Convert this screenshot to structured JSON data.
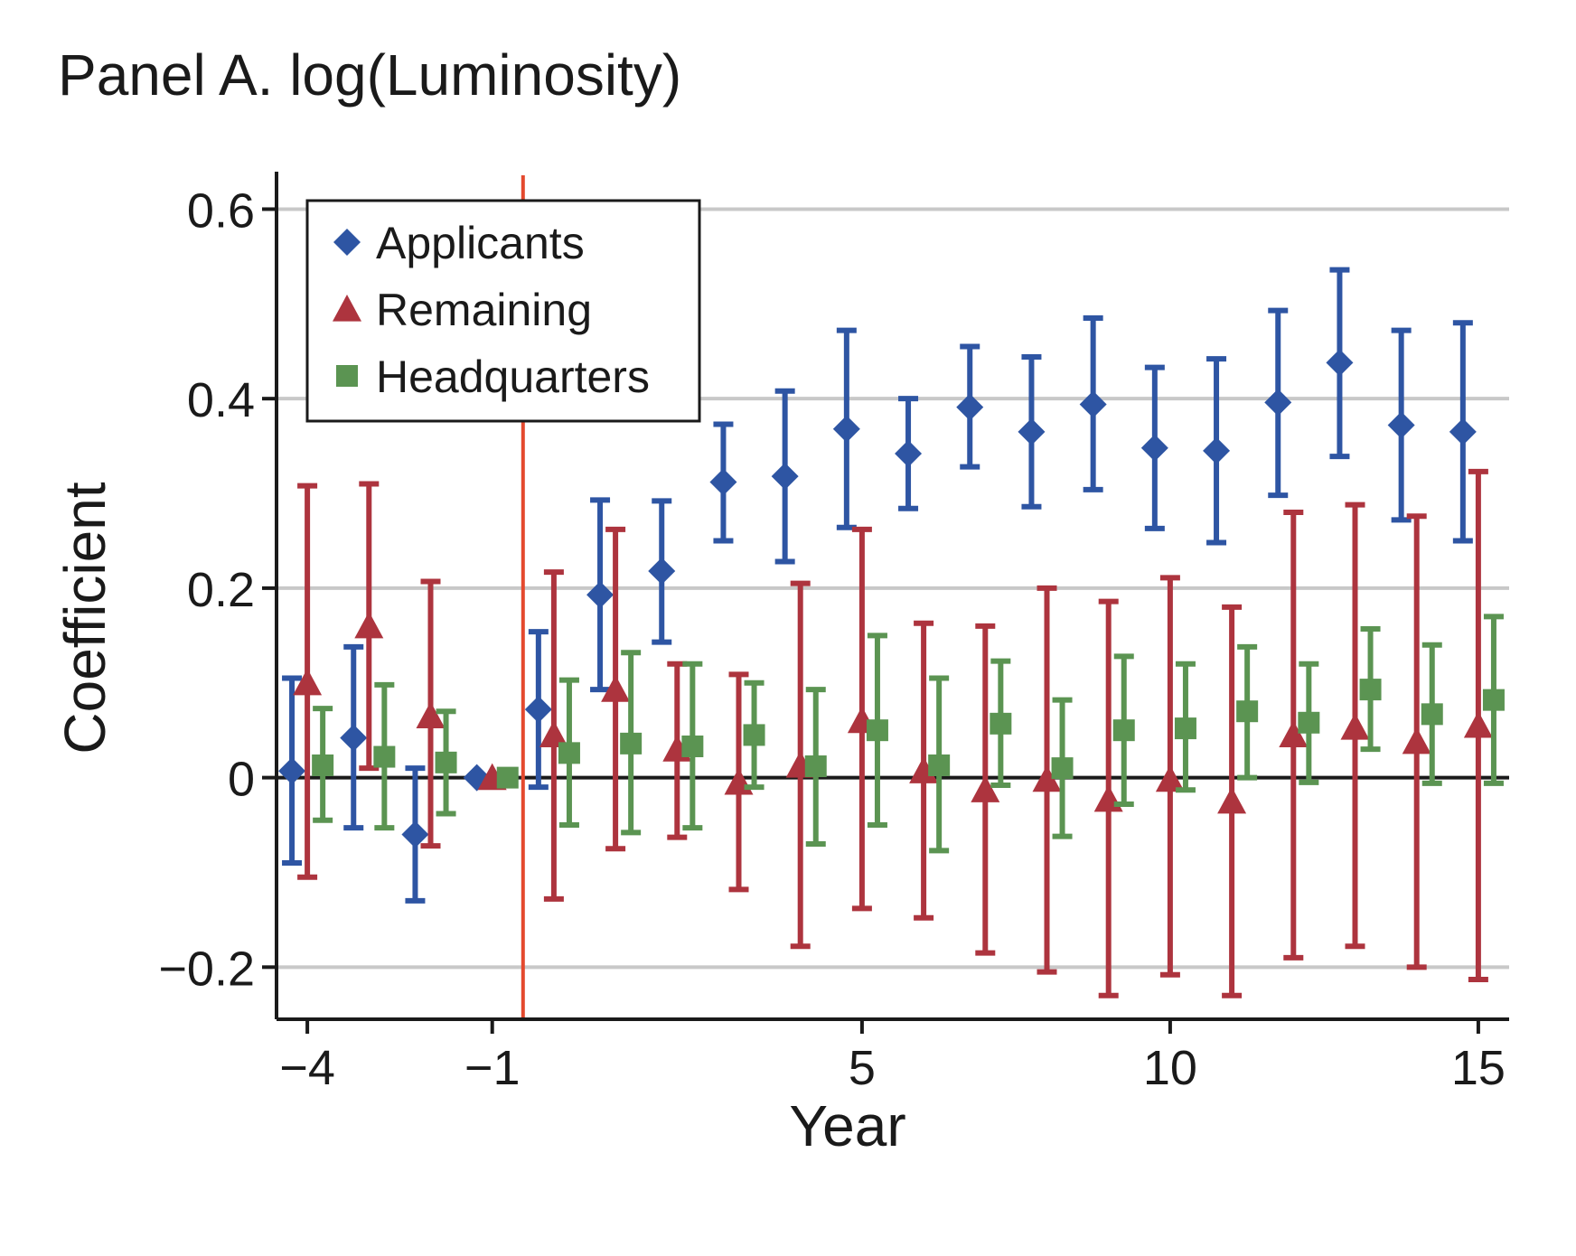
{
  "chart_data": {
    "type": "scatter",
    "title": "Panel A. log(Luminosity)",
    "xlabel": "Year",
    "ylabel": "Coefficient",
    "xlim": [
      -4.5,
      15.5
    ],
    "ylim": [
      -0.255,
      0.63
    ],
    "x_ticks": [
      -4,
      -1,
      5,
      10,
      15
    ],
    "x_tick_labels": [
      "−4",
      "−1",
      "5",
      "10",
      "15"
    ],
    "y_ticks": [
      -0.2,
      0,
      0.2,
      0.4,
      0.6
    ],
    "y_tick_labels": [
      "−0.2",
      "0",
      "0.2",
      "0.4",
      "0.6"
    ],
    "grid": true,
    "zero_line": true,
    "event_line_x": -0.5,
    "legend_position": "top-left",
    "colors": {
      "Applicants": "#2e55a3",
      "Remaining": "#ad343e",
      "Headquarters": "#5b9452",
      "event_line": "#e4492e"
    },
    "series": [
      {
        "name": "Applicants",
        "marker": "diamond",
        "x": [
          -4,
          -3,
          -2,
          -1,
          0,
          1,
          2,
          3,
          4,
          5,
          6,
          7,
          8,
          9,
          10,
          11,
          12,
          13,
          14,
          15
        ],
        "y": [
          0.007,
          0.042,
          -0.06,
          0.0,
          0.072,
          0.193,
          0.218,
          0.312,
          0.318,
          0.368,
          0.342,
          0.391,
          0.365,
          0.394,
          0.348,
          0.345,
          0.396,
          0.438,
          0.372,
          0.365
        ],
        "lower": [
          -0.09,
          -0.053,
          -0.13,
          0.0,
          -0.01,
          0.093,
          0.143,
          0.25,
          0.228,
          0.264,
          0.284,
          0.328,
          0.286,
          0.304,
          0.263,
          0.248,
          0.298,
          0.339,
          0.272,
          0.25
        ],
        "upper": [
          0.105,
          0.138,
          0.01,
          0.0,
          0.154,
          0.293,
          0.292,
          0.373,
          0.408,
          0.472,
          0.4,
          0.455,
          0.444,
          0.485,
          0.433,
          0.442,
          0.493,
          0.536,
          0.472,
          0.48
        ]
      },
      {
        "name": "Remaining",
        "marker": "triangle",
        "x": [
          -4,
          -3,
          -2,
          -1,
          0,
          1,
          2,
          3,
          4,
          5,
          6,
          7,
          8,
          9,
          10,
          11,
          12,
          13,
          14,
          15
        ],
        "y": [
          0.1,
          0.16,
          0.065,
          0.0,
          0.045,
          0.093,
          0.03,
          -0.005,
          0.013,
          0.06,
          0.007,
          -0.013,
          -0.002,
          -0.023,
          -0.002,
          -0.025,
          0.045,
          0.053,
          0.038,
          0.055
        ],
        "lower": [
          -0.105,
          0.01,
          -0.072,
          0.0,
          -0.128,
          -0.075,
          -0.063,
          -0.118,
          -0.178,
          -0.138,
          -0.148,
          -0.185,
          -0.205,
          -0.23,
          -0.208,
          -0.23,
          -0.19,
          -0.178,
          -0.2,
          -0.213
        ],
        "upper": [
          0.308,
          0.31,
          0.207,
          0.0,
          0.217,
          0.262,
          0.12,
          0.109,
          0.205,
          0.262,
          0.163,
          0.16,
          0.2,
          0.186,
          0.211,
          0.18,
          0.28,
          0.288,
          0.276,
          0.323
        ]
      },
      {
        "name": "Headquarters",
        "marker": "square",
        "x": [
          -4,
          -3,
          -2,
          -1,
          0,
          1,
          2,
          3,
          4,
          5,
          6,
          7,
          8,
          9,
          10,
          11,
          12,
          13,
          14,
          15
        ],
        "y": [
          0.013,
          0.022,
          0.016,
          0.0,
          0.026,
          0.036,
          0.033,
          0.045,
          0.012,
          0.05,
          0.013,
          0.057,
          0.01,
          0.05,
          0.052,
          0.07,
          0.058,
          0.093,
          0.067,
          0.082
        ],
        "lower": [
          -0.045,
          -0.053,
          -0.038,
          0.0,
          -0.05,
          -0.058,
          -0.053,
          -0.01,
          -0.07,
          -0.05,
          -0.077,
          -0.008,
          -0.062,
          -0.028,
          -0.013,
          0.0,
          -0.005,
          0.03,
          -0.006,
          -0.006
        ],
        "upper": [
          0.073,
          0.098,
          0.07,
          0.0,
          0.103,
          0.132,
          0.12,
          0.1,
          0.093,
          0.15,
          0.105,
          0.123,
          0.082,
          0.128,
          0.12,
          0.138,
          0.12,
          0.157,
          0.14,
          0.17
        ]
      }
    ]
  }
}
